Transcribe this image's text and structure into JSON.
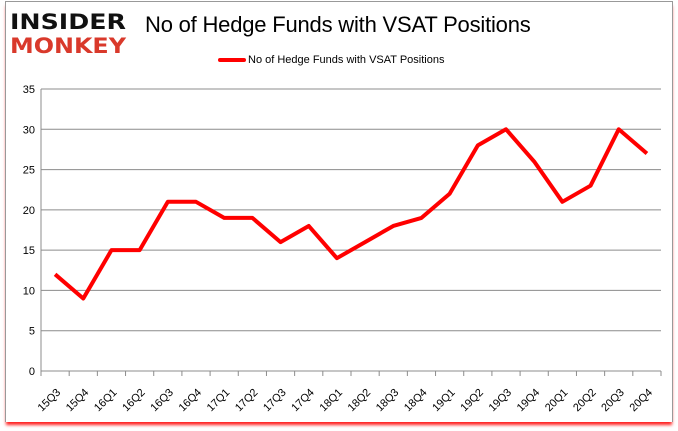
{
  "logo": {
    "line1": "INSIDER",
    "line2": "MONKEY",
    "color1": "#111111",
    "color2": "#d9392b"
  },
  "chart_data": {
    "type": "line",
    "title": "No of Hedge Funds with VSAT Positions",
    "xlabel": "",
    "ylabel": "",
    "categories": [
      "15Q3",
      "15Q4",
      "16Q1",
      "16Q2",
      "16Q3",
      "16Q4",
      "17Q1",
      "17Q2",
      "17Q3",
      "17Q4",
      "18Q1",
      "18Q2",
      "18Q3",
      "18Q4",
      "19Q1",
      "19Q2",
      "19Q3",
      "19Q4",
      "20Q1",
      "20Q2",
      "20Q3",
      "20Q4"
    ],
    "series": [
      {
        "name": "No of Hedge Funds with VSAT Positions",
        "color": "#ff0000",
        "values": [
          12,
          9,
          15,
          15,
          21,
          21,
          19,
          19,
          16,
          18,
          14,
          16,
          18,
          19,
          22,
          28,
          30,
          26,
          21,
          23,
          30,
          27
        ]
      }
    ],
    "ylim": [
      0,
      35
    ],
    "yticks": [
      0,
      5,
      10,
      15,
      20,
      25,
      30,
      35
    ],
    "grid": true,
    "legend_position": "top-center"
  }
}
